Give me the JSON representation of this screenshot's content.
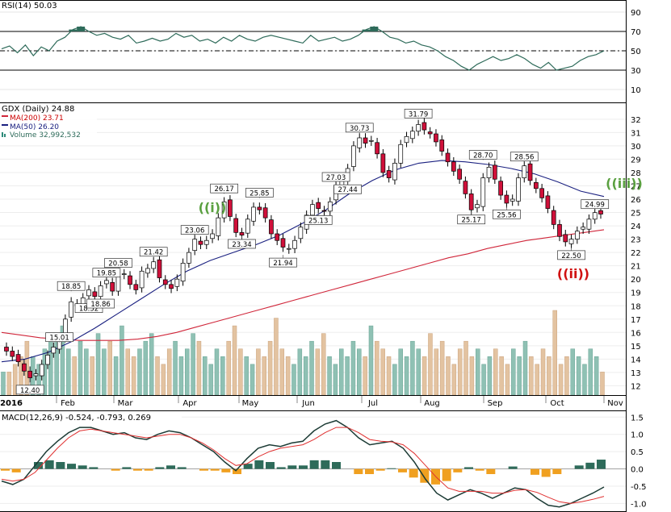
{
  "chart_data": [
    {
      "type": "line",
      "panel": "rsi",
      "header": "RSI(14) 50.03",
      "ylim": [
        0,
        100
      ],
      "y_ticks": [
        10,
        30,
        50,
        70,
        90
      ],
      "reference_lines": [
        30,
        50,
        70
      ],
      "series": [
        {
          "values": [
            52,
            55,
            48,
            56,
            45,
            54,
            50,
            60,
            64,
            72,
            75,
            70,
            66,
            68,
            64,
            62,
            66,
            58,
            60,
            63,
            60,
            62,
            68,
            64,
            66,
            60,
            62,
            58,
            64,
            60,
            66,
            62,
            60,
            64,
            66,
            64,
            62,
            60,
            58,
            66,
            60,
            62,
            64,
            60,
            62,
            66,
            72,
            75,
            70,
            64,
            62,
            58,
            60,
            56,
            54,
            50,
            44,
            40,
            34,
            30,
            36,
            40,
            44,
            40,
            42,
            46,
            42,
            36,
            32,
            38,
            30,
            32,
            34,
            40,
            44,
            46,
            50
          ]
        }
      ]
    },
    {
      "type": "candlestick",
      "panel": "price",
      "header": "GDX (Daily) 24.88",
      "ylim": [
        11.3,
        33.2
      ],
      "y_ticks": [
        12,
        13,
        14,
        15,
        16,
        17,
        18,
        19,
        20,
        21,
        22,
        23,
        24,
        25,
        26,
        27,
        28,
        29,
        30,
        31,
        32
      ],
      "x_labels": [
        "2016",
        "Feb",
        "Mar",
        "Apr",
        "May",
        "Jun",
        "Jul",
        "Aug",
        "Sep",
        "Oct",
        "Nov"
      ],
      "legend": [
        "MA(200) 23.71",
        "MA(50) 26.20",
        "Volume 32,992,532"
      ],
      "price_labels": [
        "15.01",
        "12.40",
        "18.85",
        "19.85",
        "18.52",
        "20.58",
        "18.86",
        "21.42",
        "23.06",
        "26.17",
        "23.34",
        "25.85",
        "21.94",
        "25.13",
        "27.03",
        "30.73",
        "27.44",
        "31.79",
        "28.70",
        "25.17",
        "28.56",
        "25.56",
        "24.99",
        "22.50"
      ],
      "wave_labels": [
        "((i))",
        "((ii))",
        "((iii))"
      ],
      "series": [
        {
          "name": "Close",
          "values": [
            14.6,
            14.2,
            13.8,
            13.1,
            12.6,
            12.9,
            13.6,
            14.3,
            14.9,
            15.6,
            17.0,
            18.3,
            18.0,
            18.6,
            19.2,
            18.7,
            19.5,
            19.9,
            19.1,
            20.2,
            20.4,
            19.6,
            19.2,
            20.6,
            20.8,
            21.3,
            20.1,
            19.6,
            19.3,
            20.0,
            21.2,
            22.0,
            23.0,
            22.6,
            22.9,
            23.4,
            24.6,
            25.8,
            24.7,
            23.5,
            23.3,
            24.5,
            25.4,
            25.2,
            24.6,
            23.4,
            22.9,
            22.4,
            22.3,
            22.9,
            23.9,
            24.8,
            25.6,
            25.3,
            25.1,
            25.8,
            27.0,
            27.4,
            28.3,
            30.0,
            30.6,
            30.2,
            30.4,
            29.4,
            28.0,
            27.6,
            28.7,
            30.1,
            30.7,
            31.1,
            31.6,
            31.2,
            30.9,
            30.3,
            29.6,
            28.8,
            28.1,
            27.5,
            26.4,
            25.2,
            25.6,
            27.6,
            28.4,
            27.5,
            26.3,
            25.7,
            26.0,
            27.6,
            28.5,
            27.4,
            26.8,
            26.1,
            25.3,
            24.1,
            23.2,
            22.8,
            23.0,
            23.6,
            23.9,
            24.5,
            24.99,
            24.88
          ]
        },
        {
          "name": "MA(200) 23.71",
          "values": [
            16.0,
            15.8,
            15.6,
            15.5,
            15.4,
            15.4,
            15.4,
            15.5,
            15.7,
            16.0,
            16.4,
            16.8,
            17.2,
            17.6,
            18.0,
            18.4,
            18.8,
            19.2,
            19.6,
            20.0,
            20.4,
            20.8,
            21.2,
            21.6,
            21.9,
            22.3,
            22.6,
            22.9,
            23.1,
            23.3,
            23.5,
            23.71
          ]
        },
        {
          "name": "MA(50) 26.20",
          "values": [
            13.8,
            14.0,
            14.5,
            15.3,
            16.3,
            17.4,
            18.5,
            19.6,
            20.6,
            21.4,
            22.0,
            22.6,
            23.3,
            24.2,
            25.2,
            26.4,
            27.4,
            28.2,
            28.7,
            28.9,
            28.8,
            28.6,
            28.3,
            27.9,
            27.3,
            26.6,
            26.2
          ]
        },
        {
          "name": "Volume 32,992,532",
          "values": [
            3,
            3,
            4,
            5,
            7,
            5,
            4,
            6,
            8,
            7,
            9,
            6,
            5,
            7,
            6,
            5,
            8,
            6,
            7,
            5,
            9,
            6,
            5,
            6,
            7,
            8,
            5,
            4,
            6,
            7,
            5,
            6,
            8,
            7,
            5,
            4,
            6,
            5,
            7,
            9,
            6,
            5,
            4,
            6,
            5,
            7,
            10,
            6,
            5,
            4,
            6,
            5,
            7,
            6,
            8,
            5,
            4,
            6,
            5,
            7,
            6,
            5,
            9,
            7,
            6,
            5,
            4,
            6,
            5,
            7,
            6,
            5,
            8,
            6,
            7,
            5,
            4,
            6,
            7,
            5,
            6,
            4,
            5,
            6,
            5,
            4,
            6,
            5,
            7,
            5,
            4,
            6,
            5,
            11,
            4,
            5,
            6,
            5,
            4,
            6,
            5,
            3
          ]
        }
      ]
    },
    {
      "type": "line",
      "panel": "macd",
      "header": "MACD(12,26,9) -0.524, -0.793, 0.269",
      "ylim": [
        -1.2,
        1.6
      ],
      "y_ticks": [
        -1.0,
        -0.5,
        0.0,
        0.5,
        1.0,
        1.5
      ],
      "series": [
        {
          "name": "MACD",
          "values": [
            -0.35,
            -0.45,
            -0.3,
            0.1,
            0.5,
            0.8,
            1.05,
            1.2,
            1.2,
            1.1,
            1.0,
            1.05,
            0.9,
            0.85,
            1.0,
            1.1,
            1.05,
            0.9,
            0.7,
            0.5,
            0.2,
            -0.05,
            0.3,
            0.6,
            0.7,
            0.65,
            0.75,
            0.8,
            1.1,
            1.3,
            1.4,
            1.2,
            0.9,
            0.7,
            0.75,
            0.8,
            0.6,
            0.2,
            -0.3,
            -0.7,
            -0.9,
            -0.75,
            -0.6,
            -0.7,
            -0.85,
            -0.7,
            -0.55,
            -0.6,
            -0.85,
            -1.05,
            -1.1,
            -1.0,
            -0.85,
            -0.7,
            -0.524
          ]
        },
        {
          "name": "Signal",
          "values": [
            -0.3,
            -0.35,
            -0.3,
            -0.1,
            0.25,
            0.6,
            0.9,
            1.1,
            1.15,
            1.1,
            1.05,
            1.0,
            0.95,
            0.9,
            0.95,
            1.0,
            1.0,
            0.9,
            0.75,
            0.55,
            0.3,
            0.1,
            0.15,
            0.35,
            0.5,
            0.6,
            0.65,
            0.7,
            0.85,
            1.05,
            1.2,
            1.2,
            1.05,
            0.85,
            0.8,
            0.78,
            0.7,
            0.45,
            0.1,
            -0.25,
            -0.55,
            -0.65,
            -0.65,
            -0.65,
            -0.7,
            -0.7,
            -0.62,
            -0.6,
            -0.68,
            -0.82,
            -0.95,
            -1.0,
            -0.95,
            -0.88,
            -0.793
          ]
        },
        {
          "name": "Histogram",
          "values": [
            -0.05,
            -0.1,
            0.0,
            0.2,
            0.25,
            0.2,
            0.15,
            0.1,
            0.05,
            0.0,
            -0.05,
            0.05,
            -0.05,
            -0.05,
            0.05,
            0.1,
            0.05,
            0.0,
            -0.05,
            -0.05,
            -0.1,
            -0.15,
            0.15,
            0.25,
            0.2,
            0.05,
            0.1,
            0.1,
            0.25,
            0.25,
            0.2,
            0.0,
            -0.15,
            -0.15,
            -0.05,
            0.02,
            -0.1,
            -0.25,
            -0.4,
            -0.45,
            -0.35,
            -0.1,
            0.05,
            -0.05,
            -0.15,
            0.0,
            0.07,
            0.0,
            -0.17,
            -0.23,
            -0.15,
            0.0,
            0.1,
            0.18,
            0.269
          ]
        }
      ]
    }
  ]
}
